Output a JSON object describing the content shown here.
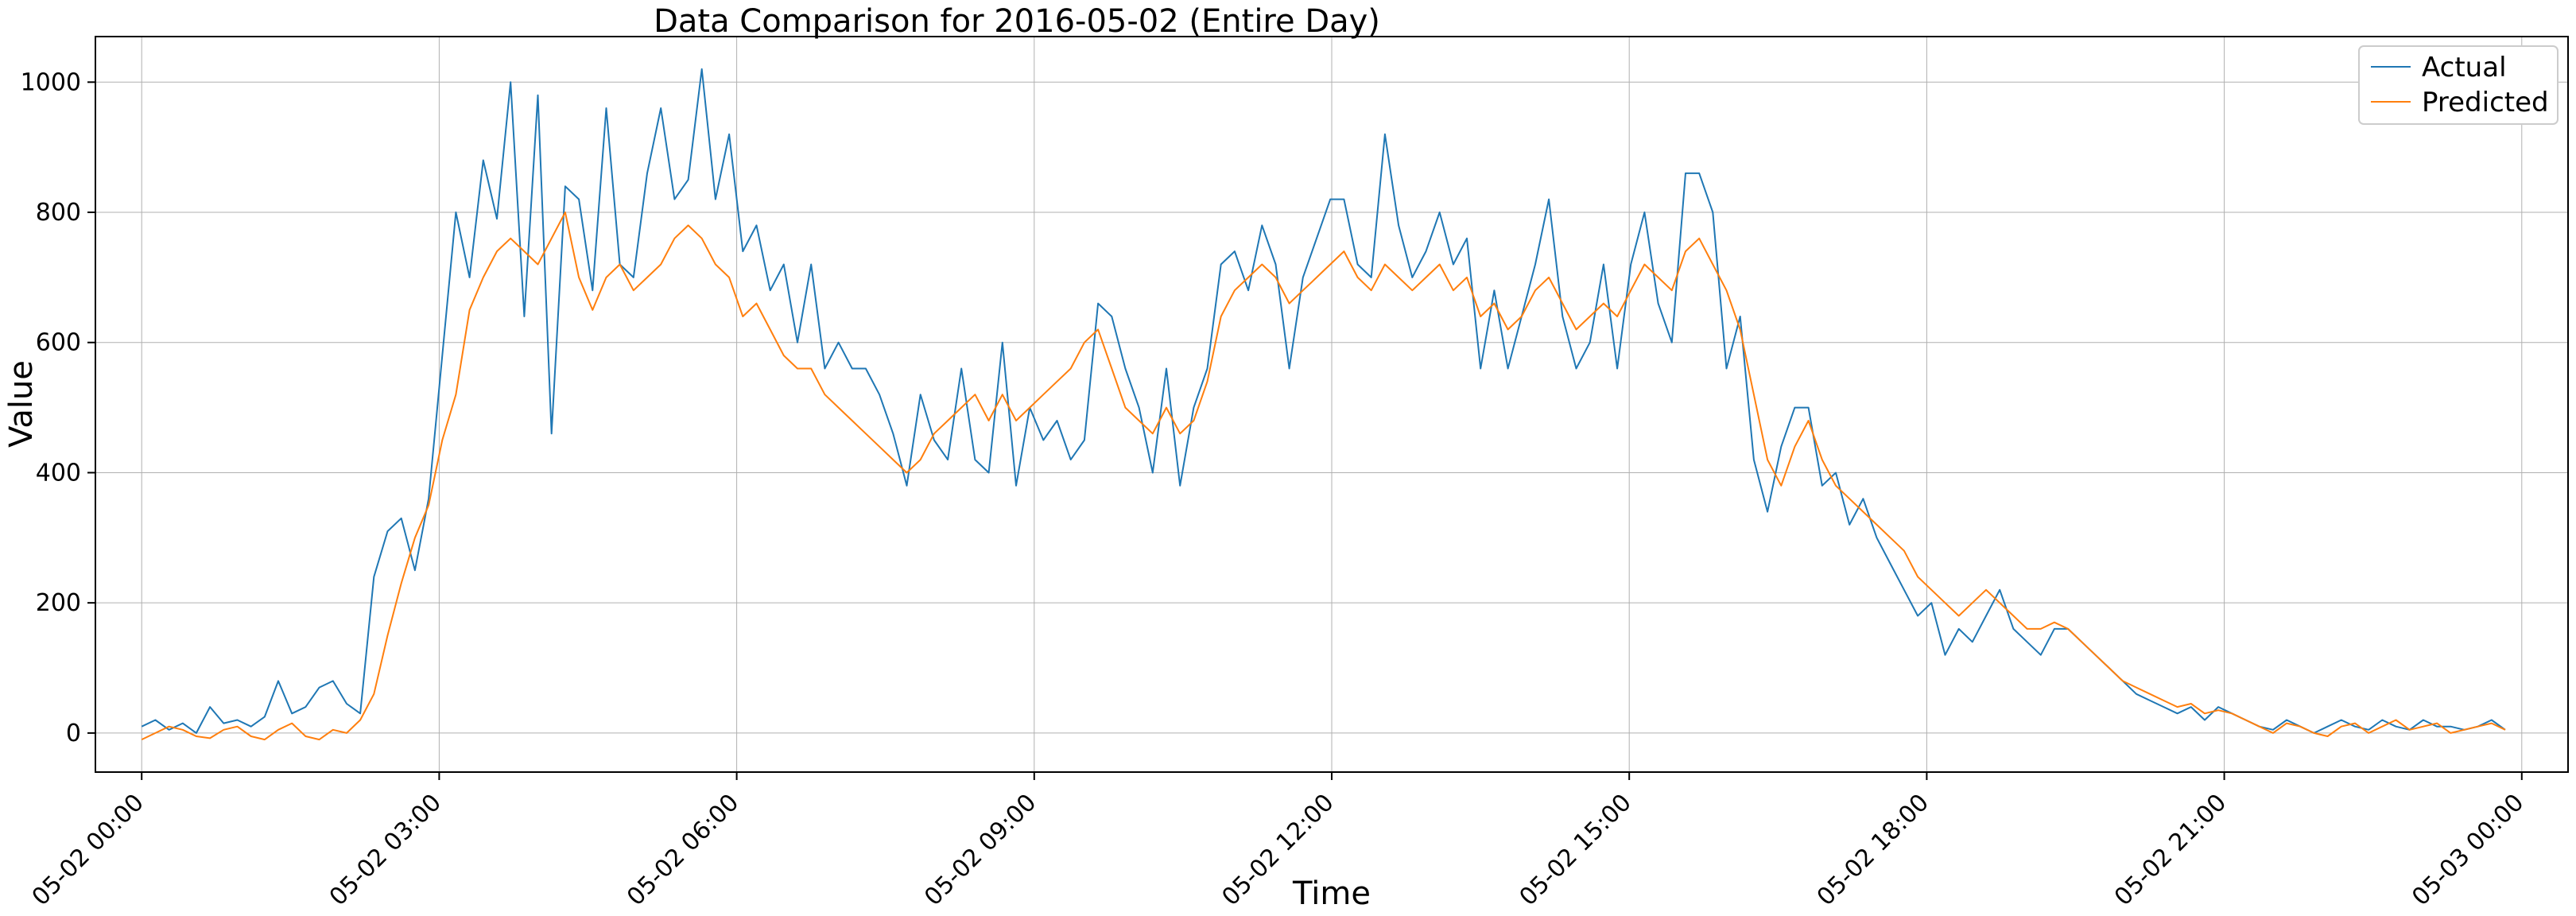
{
  "chart_data": {
    "type": "line",
    "title": "Data Comparison for 2016-05-02 (Entire Day)",
    "xlabel": "Time",
    "ylabel": "Value",
    "xlim": [
      "05-01 23:32",
      "05-03 00:28"
    ],
    "ylim": [
      -60,
      1070
    ],
    "x_ticks": [
      "05-02 00:00",
      "05-02 03:00",
      "05-02 06:00",
      "05-02 09:00",
      "05-02 12:00",
      "05-02 15:00",
      "05-02 18:00",
      "05-02 21:00",
      "05-03 00:00"
    ],
    "y_ticks": [
      0,
      200,
      400,
      600,
      800,
      1000
    ],
    "grid": true,
    "legend_position": "top-right",
    "x_sampling": "every 10 minutes, 05-02 00:00 to 05-02 23:50",
    "series": [
      {
        "name": "Actual",
        "color": "#1f77b4",
        "values": [
          10,
          20,
          5,
          15,
          0,
          40,
          15,
          20,
          10,
          25,
          80,
          30,
          40,
          70,
          80,
          45,
          30,
          240,
          310,
          330,
          250,
          360,
          580,
          800,
          700,
          880,
          790,
          1000,
          640,
          980,
          460,
          840,
          820,
          680,
          960,
          720,
          700,
          860,
          960,
          820,
          850,
          1020,
          820,
          920,
          740,
          780,
          680,
          720,
          600,
          720,
          560,
          600,
          560,
          560,
          520,
          460,
          380,
          520,
          450,
          420,
          560,
          420,
          400,
          600,
          380,
          500,
          450,
          480,
          420,
          450,
          660,
          640,
          560,
          500,
          400,
          560,
          380,
          500,
          560,
          720,
          740,
          680,
          780,
          720,
          560,
          700,
          760,
          820,
          820,
          720,
          700,
          920,
          780,
          700,
          740,
          800,
          720,
          760,
          560,
          680,
          560,
          640,
          720,
          820,
          640,
          560,
          600,
          720,
          560,
          720,
          800,
          660,
          600,
          860,
          860,
          800,
          560,
          640,
          420,
          340,
          440,
          500,
          500,
          380,
          400,
          320,
          360,
          300,
          260,
          220,
          180,
          200,
          120,
          160,
          140,
          180,
          220,
          160,
          140,
          120,
          160,
          160,
          140,
          120,
          100,
          80,
          60,
          50,
          40,
          30,
          40,
          20,
          40,
          30,
          20,
          10,
          5,
          20,
          10,
          0,
          10,
          20,
          10,
          5,
          20,
          10,
          5,
          20,
          10,
          10,
          5,
          10,
          20,
          5
        ],
        "label_x_series": "x spans 05-02 00:00 to 05-02 23:50 (144 points interpolated to 170 samples)"
      },
      {
        "name": "Predicted",
        "color": "#ff7f0e",
        "values": [
          -10,
          0,
          10,
          5,
          -5,
          -8,
          5,
          10,
          -5,
          -10,
          5,
          15,
          -5,
          -10,
          5,
          0,
          20,
          60,
          150,
          230,
          300,
          350,
          450,
          520,
          650,
          700,
          740,
          760,
          740,
          720,
          760,
          800,
          700,
          650,
          700,
          720,
          680,
          700,
          720,
          760,
          780,
          760,
          720,
          700,
          640,
          660,
          620,
          580,
          560,
          560,
          520,
          500,
          480,
          460,
          440,
          420,
          400,
          420,
          460,
          480,
          500,
          520,
          480,
          520,
          480,
          500,
          520,
          540,
          560,
          600,
          620,
          560,
          500,
          480,
          460,
          500,
          460,
          480,
          540,
          640,
          680,
          700,
          720,
          700,
          660,
          680,
          700,
          720,
          740,
          700,
          680,
          720,
          700,
          680,
          700,
          720,
          680,
          700,
          640,
          660,
          620,
          640,
          680,
          700,
          660,
          620,
          640,
          660,
          640,
          680,
          720,
          700,
          680,
          740,
          760,
          720,
          680,
          620,
          520,
          420,
          380,
          440,
          480,
          420,
          380,
          360,
          340,
          320,
          300,
          280,
          240,
          220,
          200,
          180,
          200,
          220,
          200,
          180,
          160,
          160,
          170,
          160,
          140,
          120,
          100,
          80,
          70,
          60,
          50,
          40,
          45,
          30,
          35,
          30,
          20,
          10,
          0,
          15,
          10,
          0,
          -5,
          10,
          15,
          0,
          10,
          20,
          5,
          10,
          15,
          0,
          5,
          10,
          15,
          5
        ]
      }
    ]
  }
}
